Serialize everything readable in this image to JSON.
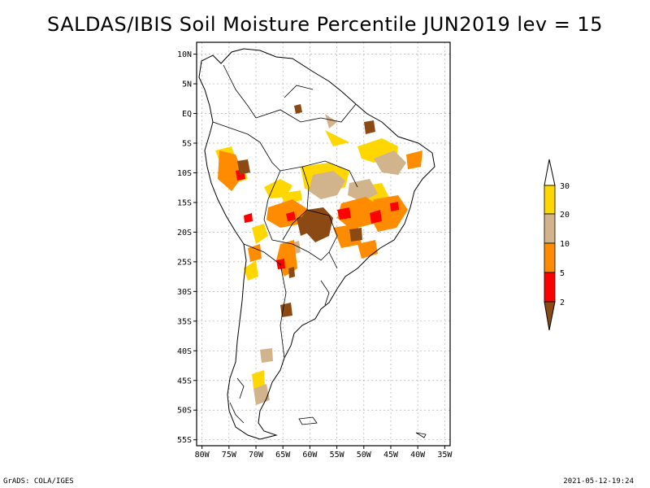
{
  "title": "SALDAS/IBIS Soil Moisture Percentile JUN2019 lev = 15",
  "footer": {
    "left": "GrADS: COLA/IGES",
    "right": "2021-05-12-19:24"
  },
  "map": {
    "lat_labels": [
      "10N",
      "5N",
      "EQ",
      "5S",
      "10S",
      "15S",
      "20S",
      "25S",
      "30S",
      "35S",
      "40S",
      "45S",
      "50S",
      "55S"
    ],
    "lat_values": [
      10,
      5,
      0,
      -5,
      -10,
      -15,
      -20,
      -25,
      -30,
      -35,
      -40,
      -45,
      -50,
      -55
    ],
    "lon_labels": [
      "80W",
      "75W",
      "70W",
      "65W",
      "60W",
      "55W",
      "50W",
      "45W",
      "40W",
      "35W"
    ],
    "lon_values": [
      -80,
      -75,
      -70,
      -65,
      -60,
      -55,
      -50,
      -45,
      -40,
      -35
    ],
    "lon_range": [
      -81,
      -34
    ],
    "lat_range": [
      12,
      -56
    ]
  },
  "legend": {
    "labels": [
      "2",
      "5",
      "10",
      "20",
      "30"
    ],
    "colors": {
      "below_2": "#8b4a14",
      "2_5": "#ff0000",
      "5_10": "#ff8c00",
      "10_20": "#d2b48c",
      "20_30": "#ffd700",
      "above_30": "#ffffff"
    }
  }
}
